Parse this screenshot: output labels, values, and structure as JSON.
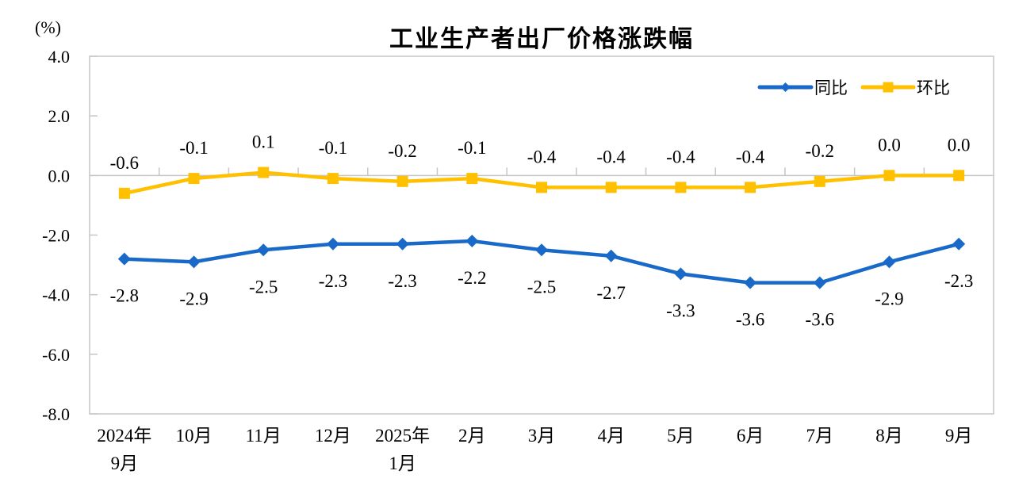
{
  "chart_data": {
    "type": "line",
    "title": "工业生产者出厂价格涨跌幅",
    "unit": "(%)",
    "categories": [
      [
        "2024年",
        "9月"
      ],
      [
        "10月"
      ],
      [
        "11月"
      ],
      [
        "12月"
      ],
      [
        "2025年",
        "1月"
      ],
      [
        "2月"
      ],
      [
        "3月"
      ],
      [
        "4月"
      ],
      [
        "5月"
      ],
      [
        "6月"
      ],
      [
        "7月"
      ],
      [
        "8月"
      ],
      [
        "9月"
      ]
    ],
    "series": [
      {
        "id": "yoy",
        "name": "同比",
        "color": "#1969C8",
        "marker": "diamond",
        "label_position": "below",
        "values": [
          -2.8,
          -2.9,
          -2.5,
          -2.3,
          -2.3,
          -2.2,
          -2.5,
          -2.7,
          -3.3,
          -3.6,
          -3.6,
          -2.9,
          -2.3
        ],
        "labels": [
          "-2.8",
          "-2.9",
          "-2.5",
          "-2.3",
          "-2.3",
          "-2.2",
          "-2.5",
          "-2.7",
          "-3.3",
          "-3.6",
          "-3.6",
          "-2.9",
          "-2.3"
        ]
      },
      {
        "id": "mom",
        "name": "环比",
        "color": "#FFC000",
        "marker": "square",
        "label_position": "above",
        "values": [
          -0.6,
          -0.1,
          0.1,
          -0.1,
          -0.2,
          -0.1,
          -0.4,
          -0.4,
          -0.4,
          -0.4,
          -0.2,
          0.0,
          0.0
        ],
        "labels": [
          "-0.6",
          "-0.1",
          "0.1",
          "-0.1",
          "-0.2",
          "-0.1",
          "-0.4",
          "-0.4",
          "-0.4",
          "-0.4",
          "-0.2",
          "0.0",
          "0.0"
        ]
      }
    ],
    "ylim": [
      -8,
      4
    ],
    "yticks": [
      4,
      2,
      0,
      -2,
      -4,
      -6,
      -8
    ],
    "ytick_labels": [
      "4.0",
      "2.0",
      "0.0",
      "-2.0",
      "-4.0",
      "-6.0",
      "-8.0"
    ],
    "grid": false,
    "zero_axis": true,
    "legend_position": "top-right",
    "axis_color": "#C6C6C6",
    "text_color": "#000000"
  }
}
